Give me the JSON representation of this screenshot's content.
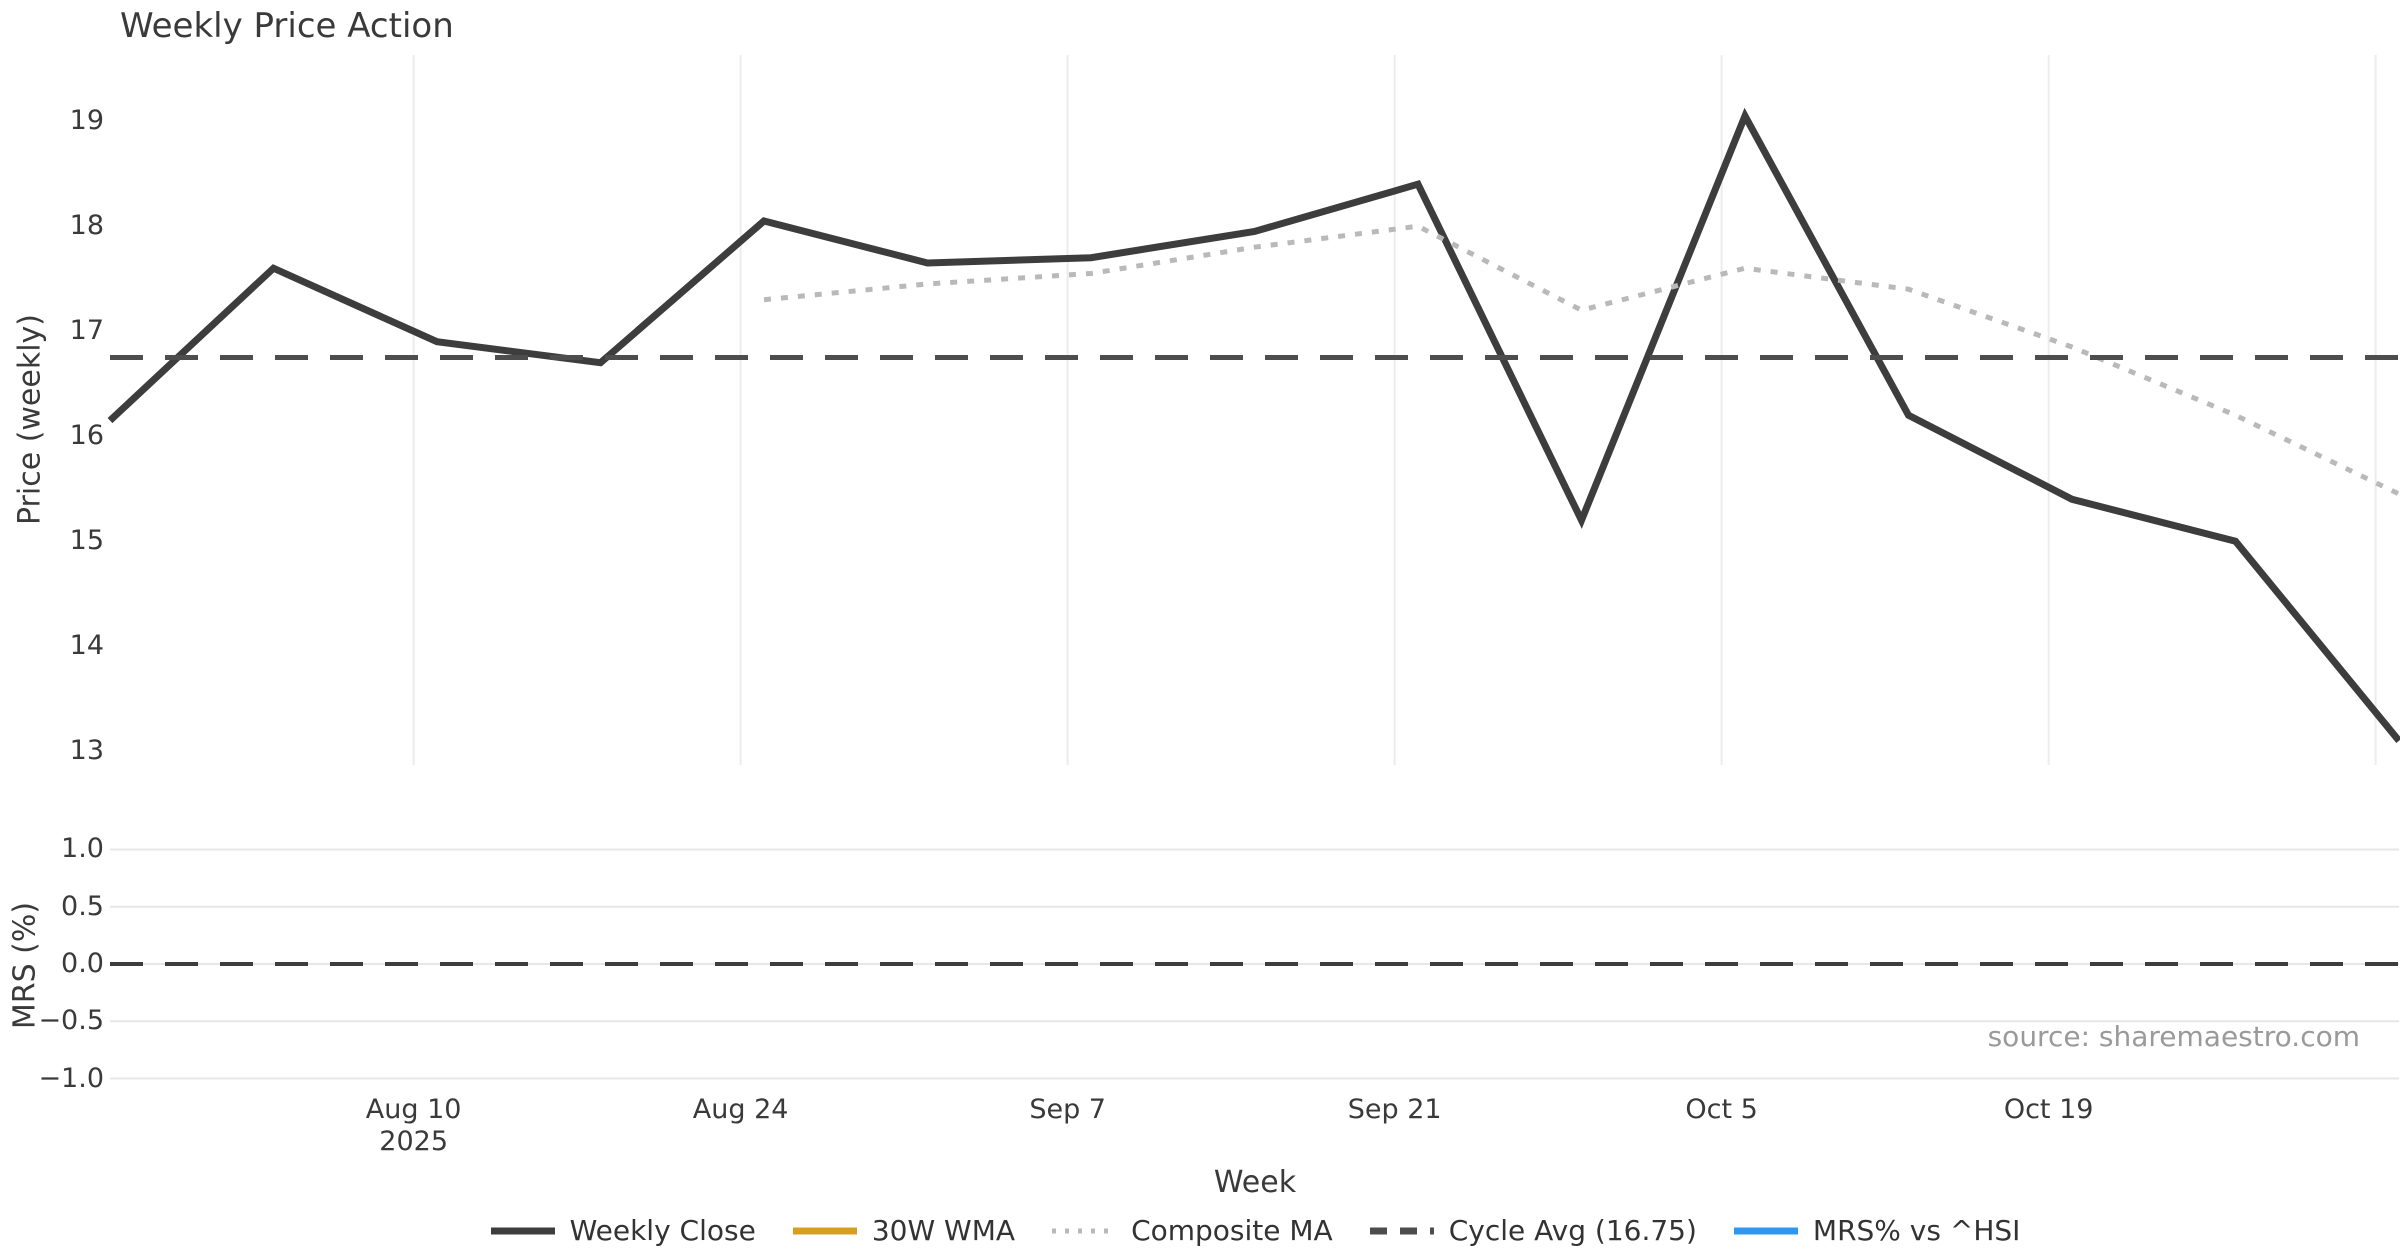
{
  "title": "Weekly Price Action",
  "source_credit": "source: sharemaestro.com",
  "chart_data": [
    {
      "type": "line",
      "panel": "price",
      "title": "Weekly Price Action",
      "xlabel": "Week",
      "ylabel": "Price (weekly)",
      "x_unit": "weekly points, 7-day spacing",
      "x_domain_days": [
        0,
        98
      ],
      "ylim": [
        12.87,
        19.63
      ],
      "grid": "vertical-only",
      "y_ticks": [
        {
          "v": 19,
          "label": "19"
        },
        {
          "v": 18,
          "label": "18"
        },
        {
          "v": 17,
          "label": "17"
        },
        {
          "v": 16,
          "label": "16"
        },
        {
          "v": 15,
          "label": "15"
        },
        {
          "v": 14,
          "label": "14"
        },
        {
          "v": 13,
          "label": "13"
        }
      ],
      "x_ticks": [
        {
          "day": 13,
          "label": "Aug 10",
          "sublabel": "2025"
        },
        {
          "day": 27,
          "label": "Aug 24",
          "sublabel": ""
        },
        {
          "day": 41,
          "label": "Sep 7",
          "sublabel": ""
        },
        {
          "day": 55,
          "label": "Sep 21",
          "sublabel": ""
        },
        {
          "day": 69,
          "label": "Oct 5",
          "sublabel": ""
        },
        {
          "day": 83,
          "label": "Oct 19",
          "sublabel": ""
        },
        {
          "day": 97,
          "label": "",
          "sublabel": ""
        }
      ],
      "series": [
        {
          "name": "Weekly Close",
          "style": "solid",
          "color": "#3d3d3d",
          "width": 7,
          "values": [
            16.15,
            17.6,
            16.9,
            16.7,
            18.05,
            17.65,
            17.7,
            17.95,
            18.4,
            15.2,
            19.05,
            16.2,
            15.4,
            15.0,
            13.1
          ]
        },
        {
          "name": "30W WMA",
          "style": "solid",
          "color": "#d5a021",
          "width": 7,
          "values": []
        },
        {
          "name": "Composite MA",
          "style": "dotted",
          "color": "#b9b9b9",
          "width": 5,
          "values": [
            null,
            null,
            null,
            null,
            17.3,
            17.45,
            17.55,
            17.8,
            18.0,
            17.2,
            17.6,
            17.4,
            16.85,
            16.2,
            15.45
          ]
        },
        {
          "name": "Cycle Avg (16.75)",
          "style": "dashed",
          "color": "#4d4d4d",
          "width": 5,
          "constant": 16.75
        }
      ]
    },
    {
      "type": "line",
      "panel": "mrs",
      "ylabel": "MRS (%)",
      "ylim": [
        -1.1,
        1.1
      ],
      "grid": "horizontal-only",
      "y_ticks": [
        {
          "v": 1.0,
          "label": "1.0"
        },
        {
          "v": 0.5,
          "label": "0.5"
        },
        {
          "v": 0.0,
          "label": "0.0"
        },
        {
          "v": -0.5,
          "label": "−0.5"
        },
        {
          "v": -1.0,
          "label": "−1.0"
        }
      ],
      "series": [
        {
          "name": "MRS% vs ^HSI",
          "style": "solid",
          "color": "#2f97f2",
          "width": 6,
          "values": []
        },
        {
          "name": "zero-line",
          "style": "dashed",
          "color": "#3d3d3d",
          "width": 4,
          "constant": 0.0
        }
      ]
    }
  ],
  "legend": {
    "items": [
      {
        "label": "Weekly Close",
        "color": "#3d3d3d",
        "style": "solid"
      },
      {
        "label": "30W WMA",
        "color": "#d5a021",
        "style": "solid"
      },
      {
        "label": "Composite MA",
        "color": "#b9b9b9",
        "style": "dotted"
      },
      {
        "label": "Cycle Avg (16.75)",
        "color": "#4d4d4d",
        "style": "dashed"
      },
      {
        "label": "MRS% vs ^HSI",
        "color": "#2f97f2",
        "style": "solid"
      }
    ]
  },
  "colors": {
    "background": "#ffffff",
    "grid": "#ececec",
    "mrs_grid": "#e7e7e7",
    "text": "#3a3a3a",
    "source_text": "#9a9a9a"
  }
}
